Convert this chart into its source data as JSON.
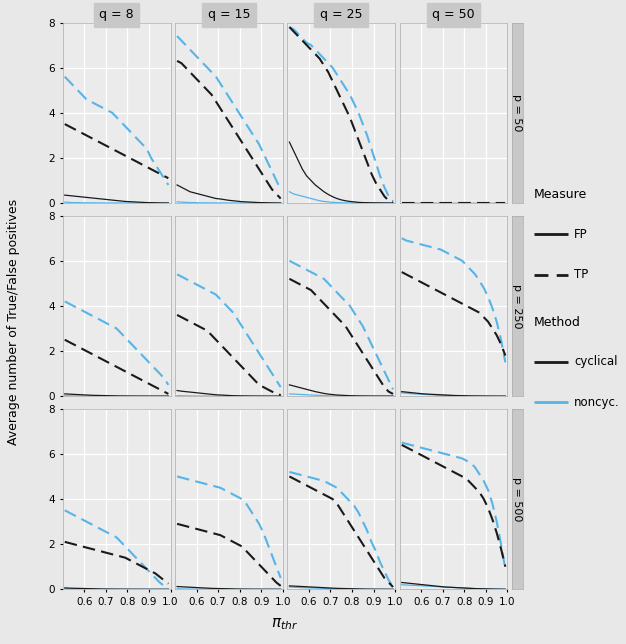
{
  "q_values": [
    8,
    15,
    25,
    50
  ],
  "p_values": [
    50,
    250,
    500
  ],
  "x": [
    0.51,
    0.53,
    0.55,
    0.57,
    0.59,
    0.61,
    0.63,
    0.65,
    0.67,
    0.69,
    0.71,
    0.73,
    0.75,
    0.77,
    0.79,
    0.81,
    0.83,
    0.85,
    0.87,
    0.89,
    0.91,
    0.93,
    0.95,
    0.97,
    0.99
  ],
  "xlim": [
    0.5,
    1.0
  ],
  "ylim": [
    0,
    8
  ],
  "yticks": [
    0,
    2,
    4,
    6,
    8
  ],
  "xticks": [
    0.6,
    0.7,
    0.8,
    0.9,
    1.0
  ],
  "ylabel": "Average number of True/False positives",
  "xlabel": "πₓₕᵣ",
  "black_color": "#1a1a1a",
  "blue_color": "#56b4e9",
  "strip_bg": "#c8c8c8",
  "plot_bg": "#ebebeb",
  "grid_color": "#ffffff",
  "fig_bg": "#e8e8e8",
  "data": {
    "p50_q8": {
      "cy_FP": [
        0.35,
        0.33,
        0.31,
        0.29,
        0.27,
        0.25,
        0.23,
        0.21,
        0.19,
        0.17,
        0.15,
        0.13,
        0.11,
        0.09,
        0.07,
        0.06,
        0.05,
        0.04,
        0.03,
        0.02,
        0.015,
        0.01,
        0.005,
        0.002,
        0.001
      ],
      "cy_TP": [
        3.5,
        3.4,
        3.3,
        3.2,
        3.1,
        3.0,
        2.9,
        2.8,
        2.7,
        2.6,
        2.5,
        2.4,
        2.3,
        2.2,
        2.1,
        2.0,
        1.9,
        1.8,
        1.7,
        1.6,
        1.5,
        1.4,
        1.3,
        1.2,
        1.1
      ],
      "nc_FP": [
        0.04,
        0.03,
        0.02,
        0.02,
        0.01,
        0.01,
        0.01,
        0.008,
        0.006,
        0.005,
        0.004,
        0.003,
        0.002,
        0.001,
        0.001,
        0.001,
        0.0,
        0.0,
        0.0,
        0.0,
        0.0,
        0.0,
        0.0,
        0.0,
        0.0
      ],
      "nc_TP": [
        5.6,
        5.4,
        5.2,
        5.0,
        4.8,
        4.6,
        4.5,
        4.4,
        4.3,
        4.2,
        4.1,
        4.0,
        3.8,
        3.6,
        3.4,
        3.2,
        3.0,
        2.8,
        2.6,
        2.4,
        2.0,
        1.7,
        1.4,
        1.1,
        0.8
      ]
    },
    "p50_q15": {
      "cy_FP": [
        0.8,
        0.7,
        0.6,
        0.5,
        0.45,
        0.4,
        0.35,
        0.3,
        0.25,
        0.2,
        0.18,
        0.15,
        0.12,
        0.1,
        0.08,
        0.06,
        0.05,
        0.04,
        0.03,
        0.02,
        0.015,
        0.01,
        0.005,
        0.002,
        0.001
      ],
      "cy_TP": [
        6.3,
        6.2,
        6.0,
        5.8,
        5.6,
        5.4,
        5.2,
        5.0,
        4.8,
        4.5,
        4.2,
        3.9,
        3.6,
        3.3,
        3.0,
        2.7,
        2.4,
        2.1,
        1.8,
        1.5,
        1.2,
        0.9,
        0.6,
        0.4,
        0.2
      ],
      "nc_FP": [
        0.05,
        0.04,
        0.03,
        0.02,
        0.02,
        0.01,
        0.01,
        0.008,
        0.006,
        0.005,
        0.004,
        0.003,
        0.002,
        0.001,
        0.001,
        0.0,
        0.0,
        0.0,
        0.0,
        0.0,
        0.0,
        0.0,
        0.0,
        0.0,
        0.0
      ],
      "nc_TP": [
        7.4,
        7.2,
        7.0,
        6.8,
        6.6,
        6.4,
        6.2,
        6.0,
        5.8,
        5.6,
        5.3,
        5.0,
        4.7,
        4.4,
        4.1,
        3.8,
        3.5,
        3.2,
        2.9,
        2.6,
        2.2,
        1.8,
        1.4,
        1.0,
        0.6
      ]
    },
    "p50_q25": {
      "cy_FP": [
        2.7,
        2.3,
        1.9,
        1.5,
        1.2,
        1.0,
        0.8,
        0.65,
        0.5,
        0.38,
        0.28,
        0.2,
        0.14,
        0.1,
        0.07,
        0.05,
        0.03,
        0.02,
        0.015,
        0.01,
        0.008,
        0.005,
        0.003,
        0.001,
        0.0
      ],
      "cy_TP": [
        7.8,
        7.6,
        7.4,
        7.2,
        7.0,
        6.8,
        6.6,
        6.4,
        6.1,
        5.8,
        5.4,
        5.0,
        4.6,
        4.2,
        3.8,
        3.3,
        2.8,
        2.3,
        1.8,
        1.3,
        0.9,
        0.6,
        0.3,
        0.1,
        0.05
      ],
      "nc_FP": [
        0.5,
        0.4,
        0.35,
        0.3,
        0.25,
        0.2,
        0.15,
        0.1,
        0.07,
        0.05,
        0.03,
        0.02,
        0.01,
        0.008,
        0.005,
        0.003,
        0.002,
        0.001,
        0.0,
        0.0,
        0.0,
        0.0,
        0.0,
        0.0,
        0.0
      ],
      "nc_TP": [
        7.8,
        7.7,
        7.5,
        7.3,
        7.1,
        7.0,
        6.8,
        6.6,
        6.4,
        6.2,
        6.0,
        5.7,
        5.4,
        5.1,
        4.8,
        4.4,
        4.0,
        3.5,
        3.0,
        2.4,
        1.8,
        1.2,
        0.7,
        0.3,
        0.1
      ]
    },
    "p50_q50": {
      "cy_FP": [
        0.0,
        0.0,
        0.0,
        0.0,
        0.0,
        0.0,
        0.0,
        0.0,
        0.0,
        0.0,
        0.0,
        0.0,
        0.0,
        0.0,
        0.0,
        0.0,
        0.0,
        0.0,
        0.0,
        0.0,
        0.0,
        0.0,
        0.0,
        0.0,
        0.0
      ],
      "cy_TP": [
        0.0,
        0.0,
        0.0,
        0.0,
        0.0,
        0.0,
        0.0,
        0.0,
        0.0,
        0.0,
        0.0,
        0.0,
        0.0,
        0.0,
        0.0,
        0.0,
        0.0,
        0.0,
        0.0,
        0.0,
        0.0,
        0.0,
        0.0,
        0.0,
        0.0
      ],
      "nc_FP": [
        0.0,
        0.0,
        0.0,
        0.0,
        0.0,
        0.0,
        0.0,
        0.0,
        0.0,
        0.0,
        0.0,
        0.0,
        0.0,
        0.0,
        0.0,
        0.0,
        0.0,
        0.0,
        0.0,
        0.0,
        0.0,
        0.0,
        0.0,
        0.0,
        0.0
      ],
      "nc_TP": [
        0.0,
        0.0,
        0.0,
        0.0,
        0.0,
        0.0,
        0.0,
        0.0,
        0.0,
        0.0,
        0.0,
        0.0,
        0.0,
        0.0,
        0.0,
        0.0,
        0.0,
        0.0,
        0.0,
        0.0,
        0.0,
        0.0,
        0.0,
        0.0,
        0.0
      ]
    },
    "p250_q8": {
      "cy_FP": [
        0.1,
        0.09,
        0.08,
        0.07,
        0.06,
        0.05,
        0.04,
        0.035,
        0.03,
        0.025,
        0.02,
        0.015,
        0.01,
        0.008,
        0.006,
        0.004,
        0.003,
        0.002,
        0.001,
        0.001,
        0.0,
        0.0,
        0.0,
        0.0,
        0.0
      ],
      "cy_TP": [
        2.5,
        2.4,
        2.3,
        2.2,
        2.1,
        2.0,
        1.9,
        1.8,
        1.7,
        1.6,
        1.5,
        1.4,
        1.3,
        1.2,
        1.1,
        1.0,
        0.9,
        0.8,
        0.7,
        0.6,
        0.5,
        0.4,
        0.3,
        0.2,
        0.1
      ],
      "nc_FP": [
        0.02,
        0.015,
        0.01,
        0.008,
        0.006,
        0.005,
        0.004,
        0.003,
        0.002,
        0.001,
        0.001,
        0.0,
        0.0,
        0.0,
        0.0,
        0.0,
        0.0,
        0.0,
        0.0,
        0.0,
        0.0,
        0.0,
        0.0,
        0.0,
        0.0
      ],
      "nc_TP": [
        4.2,
        4.1,
        4.0,
        3.9,
        3.8,
        3.7,
        3.6,
        3.5,
        3.4,
        3.3,
        3.2,
        3.1,
        3.0,
        2.8,
        2.6,
        2.4,
        2.2,
        2.0,
        1.8,
        1.6,
        1.4,
        1.2,
        1.0,
        0.8,
        0.5
      ]
    },
    "p250_q15": {
      "cy_FP": [
        0.25,
        0.22,
        0.2,
        0.18,
        0.16,
        0.14,
        0.12,
        0.1,
        0.08,
        0.06,
        0.05,
        0.04,
        0.03,
        0.02,
        0.015,
        0.01,
        0.008,
        0.005,
        0.003,
        0.002,
        0.001,
        0.0,
        0.0,
        0.0,
        0.0
      ],
      "cy_TP": [
        3.6,
        3.5,
        3.4,
        3.3,
        3.2,
        3.1,
        3.0,
        2.9,
        2.7,
        2.5,
        2.3,
        2.1,
        1.9,
        1.7,
        1.5,
        1.3,
        1.1,
        0.9,
        0.7,
        0.5,
        0.4,
        0.3,
        0.2,
        0.1,
        0.05
      ],
      "nc_FP": [
        0.02,
        0.015,
        0.01,
        0.008,
        0.006,
        0.005,
        0.004,
        0.003,
        0.002,
        0.001,
        0.001,
        0.0,
        0.0,
        0.0,
        0.0,
        0.0,
        0.0,
        0.0,
        0.0,
        0.0,
        0.0,
        0.0,
        0.0,
        0.0,
        0.0
      ],
      "nc_TP": [
        5.4,
        5.3,
        5.2,
        5.1,
        5.0,
        4.9,
        4.8,
        4.7,
        4.6,
        4.5,
        4.3,
        4.1,
        3.9,
        3.7,
        3.4,
        3.1,
        2.8,
        2.5,
        2.2,
        1.9,
        1.6,
        1.3,
        1.0,
        0.7,
        0.4
      ]
    },
    "p250_q25": {
      "cy_FP": [
        0.5,
        0.45,
        0.4,
        0.35,
        0.3,
        0.25,
        0.2,
        0.16,
        0.12,
        0.09,
        0.07,
        0.05,
        0.04,
        0.03,
        0.02,
        0.015,
        0.01,
        0.007,
        0.005,
        0.003,
        0.002,
        0.001,
        0.0,
        0.0,
        0.0
      ],
      "cy_TP": [
        5.2,
        5.1,
        5.0,
        4.9,
        4.8,
        4.7,
        4.5,
        4.3,
        4.1,
        3.9,
        3.7,
        3.5,
        3.3,
        3.1,
        2.8,
        2.5,
        2.2,
        1.9,
        1.6,
        1.3,
        1.0,
        0.7,
        0.4,
        0.2,
        0.1
      ],
      "nc_FP": [
        0.1,
        0.09,
        0.08,
        0.07,
        0.06,
        0.05,
        0.04,
        0.03,
        0.02,
        0.015,
        0.01,
        0.008,
        0.005,
        0.003,
        0.002,
        0.001,
        0.001,
        0.0,
        0.0,
        0.0,
        0.0,
        0.0,
        0.0,
        0.0,
        0.0
      ],
      "nc_TP": [
        6.0,
        5.9,
        5.8,
        5.7,
        5.6,
        5.5,
        5.4,
        5.3,
        5.2,
        5.0,
        4.8,
        4.6,
        4.4,
        4.2,
        4.0,
        3.7,
        3.4,
        3.1,
        2.7,
        2.3,
        1.9,
        1.5,
        1.1,
        0.7,
        0.3
      ]
    },
    "p250_q50": {
      "cy_FP": [
        0.2,
        0.18,
        0.16,
        0.14,
        0.12,
        0.1,
        0.09,
        0.08,
        0.07,
        0.06,
        0.05,
        0.04,
        0.03,
        0.025,
        0.02,
        0.015,
        0.01,
        0.008,
        0.006,
        0.004,
        0.003,
        0.002,
        0.001,
        0.0,
        0.0
      ],
      "cy_TP": [
        5.5,
        5.4,
        5.3,
        5.2,
        5.1,
        5.0,
        4.9,
        4.8,
        4.7,
        4.6,
        4.5,
        4.4,
        4.3,
        4.2,
        4.1,
        4.0,
        3.9,
        3.8,
        3.7,
        3.5,
        3.3,
        3.0,
        2.7,
        2.3,
        1.8
      ],
      "nc_FP": [
        0.15,
        0.13,
        0.11,
        0.1,
        0.09,
        0.08,
        0.07,
        0.06,
        0.05,
        0.04,
        0.035,
        0.03,
        0.025,
        0.02,
        0.015,
        0.01,
        0.008,
        0.006,
        0.004,
        0.003,
        0.002,
        0.001,
        0.001,
        0.0,
        0.0
      ],
      "nc_TP": [
        7.0,
        6.9,
        6.85,
        6.8,
        6.75,
        6.7,
        6.65,
        6.6,
        6.55,
        6.5,
        6.4,
        6.3,
        6.2,
        6.1,
        6.0,
        5.8,
        5.6,
        5.4,
        5.1,
        4.8,
        4.4,
        3.9,
        3.3,
        2.5,
        1.5
      ]
    },
    "p500_q8": {
      "cy_FP": [
        0.06,
        0.05,
        0.045,
        0.04,
        0.035,
        0.03,
        0.025,
        0.02,
        0.015,
        0.012,
        0.01,
        0.008,
        0.006,
        0.005,
        0.004,
        0.003,
        0.002,
        0.001,
        0.001,
        0.0,
        0.0,
        0.0,
        0.0,
        0.0,
        0.0
      ],
      "cy_TP": [
        2.1,
        2.05,
        2.0,
        1.95,
        1.9,
        1.85,
        1.8,
        1.75,
        1.7,
        1.65,
        1.6,
        1.55,
        1.5,
        1.45,
        1.4,
        1.3,
        1.2,
        1.1,
        1.0,
        0.9,
        0.8,
        0.7,
        0.55,
        0.4,
        0.25
      ],
      "nc_FP": [
        0.01,
        0.008,
        0.006,
        0.005,
        0.004,
        0.003,
        0.002,
        0.002,
        0.001,
        0.001,
        0.001,
        0.0,
        0.0,
        0.0,
        0.0,
        0.0,
        0.0,
        0.0,
        0.0,
        0.0,
        0.0,
        0.0,
        0.0,
        0.0,
        0.0
      ],
      "nc_TP": [
        3.5,
        3.4,
        3.3,
        3.2,
        3.1,
        3.0,
        2.9,
        2.8,
        2.7,
        2.6,
        2.5,
        2.4,
        2.3,
        2.1,
        1.9,
        1.7,
        1.5,
        1.3,
        1.1,
        0.9,
        0.7,
        0.5,
        0.3,
        0.15,
        0.05
      ]
    },
    "p500_q15": {
      "cy_FP": [
        0.12,
        0.11,
        0.1,
        0.09,
        0.08,
        0.07,
        0.06,
        0.05,
        0.04,
        0.035,
        0.03,
        0.025,
        0.02,
        0.015,
        0.01,
        0.008,
        0.006,
        0.004,
        0.003,
        0.002,
        0.001,
        0.001,
        0.0,
        0.0,
        0.0
      ],
      "cy_TP": [
        2.9,
        2.85,
        2.8,
        2.75,
        2.7,
        2.65,
        2.6,
        2.55,
        2.5,
        2.45,
        2.4,
        2.3,
        2.2,
        2.1,
        2.0,
        1.9,
        1.7,
        1.5,
        1.3,
        1.1,
        0.9,
        0.7,
        0.5,
        0.3,
        0.15
      ],
      "nc_FP": [
        0.02,
        0.015,
        0.01,
        0.008,
        0.006,
        0.005,
        0.004,
        0.003,
        0.002,
        0.001,
        0.001,
        0.0,
        0.0,
        0.0,
        0.0,
        0.0,
        0.0,
        0.0,
        0.0,
        0.0,
        0.0,
        0.0,
        0.0,
        0.0,
        0.0
      ],
      "nc_TP": [
        5.0,
        4.95,
        4.9,
        4.85,
        4.8,
        4.75,
        4.7,
        4.65,
        4.6,
        4.55,
        4.5,
        4.4,
        4.3,
        4.2,
        4.1,
        4.0,
        3.8,
        3.5,
        3.2,
        2.9,
        2.5,
        2.0,
        1.5,
        1.0,
        0.5
      ]
    },
    "p500_q25": {
      "cy_FP": [
        0.15,
        0.14,
        0.13,
        0.12,
        0.11,
        0.1,
        0.09,
        0.08,
        0.07,
        0.06,
        0.05,
        0.04,
        0.035,
        0.03,
        0.025,
        0.02,
        0.015,
        0.01,
        0.007,
        0.005,
        0.003,
        0.002,
        0.001,
        0.0,
        0.0
      ],
      "cy_TP": [
        5.0,
        4.9,
        4.8,
        4.7,
        4.6,
        4.5,
        4.4,
        4.3,
        4.2,
        4.1,
        4.0,
        3.8,
        3.5,
        3.2,
        2.9,
        2.6,
        2.3,
        2.0,
        1.7,
        1.4,
        1.1,
        0.8,
        0.5,
        0.3,
        0.1
      ],
      "nc_FP": [
        0.1,
        0.09,
        0.08,
        0.07,
        0.065,
        0.06,
        0.055,
        0.05,
        0.04,
        0.03,
        0.025,
        0.02,
        0.015,
        0.01,
        0.008,
        0.005,
        0.003,
        0.002,
        0.001,
        0.001,
        0.0,
        0.0,
        0.0,
        0.0,
        0.0
      ],
      "nc_TP": [
        5.2,
        5.15,
        5.1,
        5.05,
        5.0,
        4.95,
        4.9,
        4.85,
        4.8,
        4.7,
        4.6,
        4.5,
        4.3,
        4.1,
        3.9,
        3.7,
        3.4,
        3.0,
        2.6,
        2.1,
        1.7,
        1.2,
        0.8,
        0.4,
        0.1
      ]
    },
    "p500_q50": {
      "cy_FP": [
        0.3,
        0.28,
        0.26,
        0.24,
        0.22,
        0.2,
        0.18,
        0.16,
        0.14,
        0.12,
        0.1,
        0.09,
        0.08,
        0.07,
        0.06,
        0.05,
        0.04,
        0.03,
        0.025,
        0.02,
        0.015,
        0.01,
        0.007,
        0.004,
        0.002
      ],
      "cy_TP": [
        6.4,
        6.3,
        6.2,
        6.1,
        6.0,
        5.9,
        5.8,
        5.7,
        5.6,
        5.5,
        5.4,
        5.3,
        5.2,
        5.1,
        5.0,
        4.9,
        4.7,
        4.5,
        4.3,
        4.0,
        3.6,
        3.1,
        2.5,
        1.8,
        1.0
      ],
      "nc_FP": [
        0.2,
        0.19,
        0.18,
        0.17,
        0.16,
        0.15,
        0.14,
        0.13,
        0.12,
        0.11,
        0.1,
        0.09,
        0.08,
        0.07,
        0.06,
        0.05,
        0.04,
        0.03,
        0.025,
        0.02,
        0.015,
        0.01,
        0.007,
        0.004,
        0.002
      ],
      "nc_TP": [
        6.5,
        6.45,
        6.4,
        6.35,
        6.3,
        6.25,
        6.2,
        6.15,
        6.1,
        6.05,
        6.0,
        5.95,
        5.9,
        5.85,
        5.8,
        5.7,
        5.6,
        5.4,
        5.1,
        4.8,
        4.4,
        3.8,
        3.0,
        2.0,
        0.9
      ]
    }
  }
}
